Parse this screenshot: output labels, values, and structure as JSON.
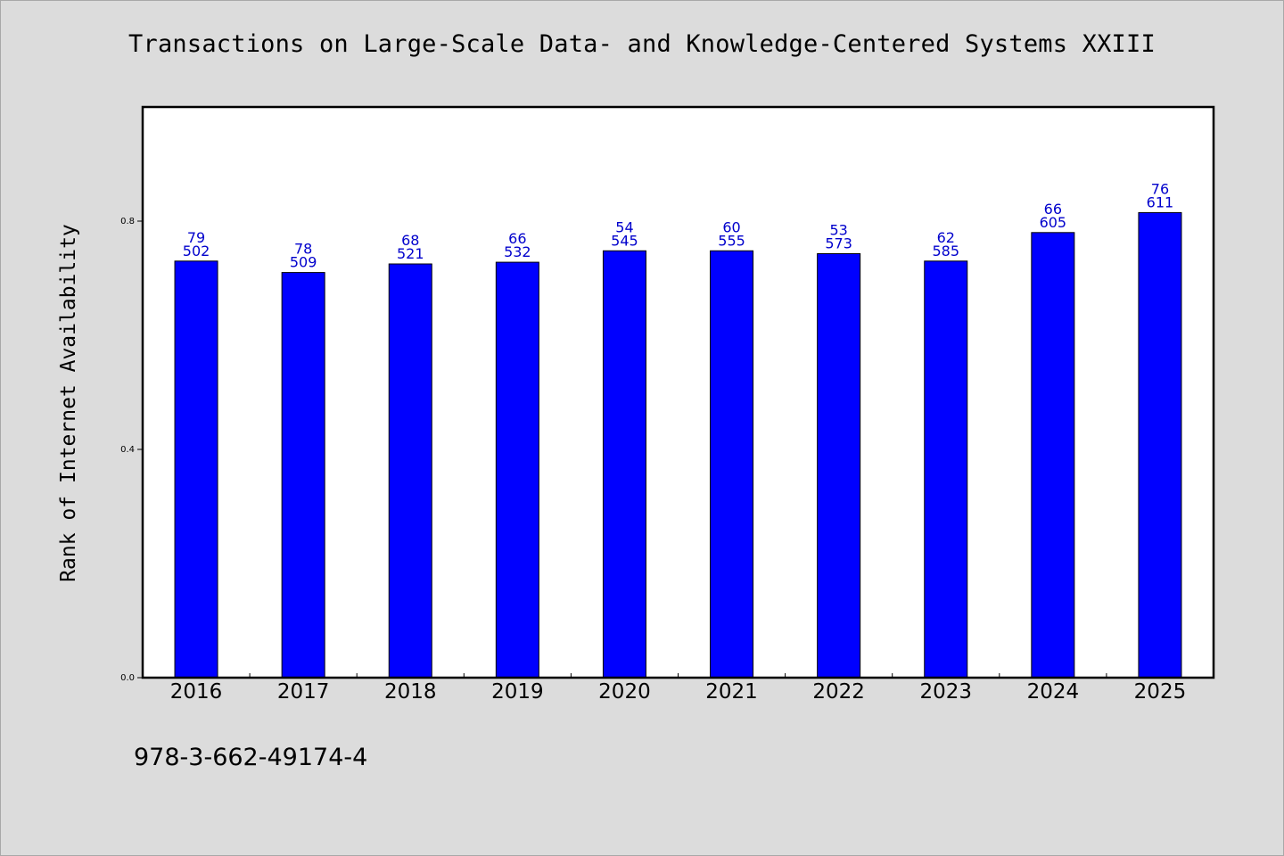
{
  "title": "Transactions on Large-Scale Data- and Knowledge-Centered Systems XXIII",
  "footer": "978-3-662-49174-4",
  "colors": {
    "bar": "#0000ff",
    "label": "#0000cc",
    "background": "#dcdcdc",
    "plot": "#ffffff"
  },
  "chart_data": {
    "type": "bar",
    "title": "Transactions on Large-Scale Data- and Knowledge-Centered Systems XXIII",
    "xlabel": "",
    "ylabel": "Rank of Internet Availability",
    "categories": [
      "2016",
      "2017",
      "2018",
      "2019",
      "2020",
      "2021",
      "2022",
      "2023",
      "2024",
      "2025"
    ],
    "values": [
      0.73,
      0.71,
      0.725,
      0.728,
      0.748,
      0.748,
      0.743,
      0.73,
      0.78,
      0.815
    ],
    "label_top": [
      "79",
      "78",
      "68",
      "66",
      "54",
      "60",
      "53",
      "62",
      "66",
      "76"
    ],
    "label_bottom": [
      "502",
      "509",
      "521",
      "532",
      "545",
      "555",
      "573",
      "585",
      "605",
      "611"
    ],
    "ylim": [
      0,
      1.0
    ],
    "yticks": [
      0.0,
      0.4,
      0.8
    ],
    "ytick_labels": [
      "0.0",
      "0.4",
      "0.8"
    ],
    "grid": false,
    "legend": "none"
  }
}
